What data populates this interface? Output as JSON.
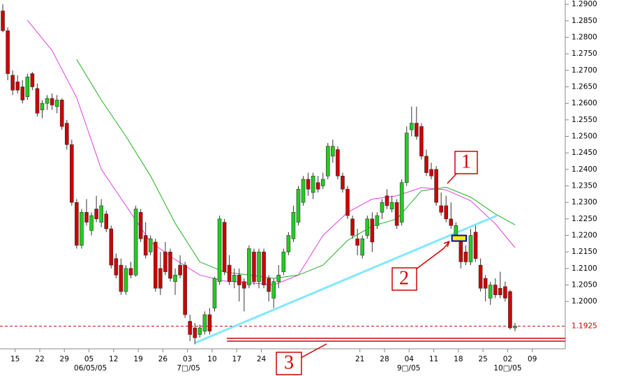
{
  "chart_data": {
    "type": "candlestick",
    "colors": {
      "up": "#22cc22",
      "down": "#cc0000",
      "outline": "#333333"
    },
    "xlim": [
      -0.57,
      114.2
    ],
    "ylim": [
      1.1863,
      1.2913
    ],
    "yticks": [
      {
        "value": 1.29,
        "label": "1.2900"
      },
      {
        "value": 1.285,
        "label": "1.2850"
      },
      {
        "value": 1.28,
        "label": "1.2800"
      },
      {
        "value": 1.275,
        "label": "1.2750"
      },
      {
        "value": 1.27,
        "label": "1.2700"
      },
      {
        "value": 1.265,
        "label": "1.2650"
      },
      {
        "value": 1.26,
        "label": "1.2600"
      },
      {
        "value": 1.255,
        "label": "1.2550"
      },
      {
        "value": 1.25,
        "label": "1.2500"
      },
      {
        "value": 1.245,
        "label": "1.2450"
      },
      {
        "value": 1.24,
        "label": "1.2400"
      },
      {
        "value": 1.235,
        "label": "1.2350"
      },
      {
        "value": 1.23,
        "label": "1.2300"
      },
      {
        "value": 1.225,
        "label": "1.2250"
      },
      {
        "value": 1.22,
        "label": "1.2200"
      },
      {
        "value": 1.215,
        "label": "1.2150"
      },
      {
        "value": 1.21,
        "label": "1.2100"
      },
      {
        "value": 1.205,
        "label": "1.2050"
      },
      {
        "value": 1.2,
        "label": "1.2000"
      }
    ],
    "xticks": [
      {
        "value": 2.5,
        "label": "15"
      },
      {
        "value": 7.5,
        "label": "22"
      },
      {
        "value": 12.5,
        "label": "29"
      },
      {
        "value": 17.5,
        "label": "05"
      },
      {
        "value": 22.5,
        "label": "12"
      },
      {
        "value": 27.5,
        "label": "19"
      },
      {
        "value": 32.5,
        "label": "26"
      },
      {
        "value": 37.5,
        "label": "03"
      },
      {
        "value": 42.5,
        "label": "10"
      },
      {
        "value": 47.5,
        "label": "17"
      },
      {
        "value": 52.5,
        "label": "24"
      },
      {
        "value": 72.5,
        "label": "21"
      },
      {
        "value": 77.5,
        "label": "28"
      },
      {
        "value": 82.5,
        "label": "04"
      },
      {
        "value": 87.5,
        "label": "11"
      },
      {
        "value": 92.5,
        "label": "18"
      },
      {
        "value": 97.5,
        "label": "25"
      },
      {
        "value": 102.5,
        "label": "02"
      },
      {
        "value": 107.5,
        "label": "09"
      }
    ],
    "month_labels": [
      {
        "value": 17.8,
        "label": "06/05/05"
      },
      {
        "value": 37.7,
        "label": "7□/05"
      },
      {
        "value": 82.4,
        "label": "9□/05"
      },
      {
        "value": 102.5,
        "label": "10□/05"
      }
    ],
    "x": [
      0,
      1,
      2,
      3,
      4,
      5,
      6,
      7,
      8,
      9,
      10,
      11,
      12,
      13,
      14,
      15,
      16,
      17,
      18,
      19,
      20,
      21,
      22,
      23,
      24,
      25,
      26,
      27,
      28,
      29,
      30,
      31,
      32,
      33,
      34,
      35,
      36,
      37,
      38,
      39,
      40,
      41,
      42,
      43,
      44,
      45,
      46,
      47,
      48,
      49,
      50,
      51,
      52,
      53,
      54,
      55,
      56,
      57,
      58,
      59,
      60,
      61,
      62,
      63,
      64,
      65,
      66,
      67,
      68,
      69,
      70,
      71,
      72,
      73,
      74,
      75,
      76,
      77,
      78,
      79,
      80,
      81,
      82,
      83,
      84,
      85,
      86,
      87,
      88,
      89,
      90,
      91,
      92,
      93,
      94,
      95,
      96,
      97,
      98,
      99,
      100,
      101,
      102,
      103,
      104
    ],
    "open": [
      1.288,
      1.282,
      1.2685,
      1.2665,
      1.265,
      1.262,
      1.269,
      1.2645,
      1.258,
      1.26,
      1.2615,
      1.259,
      1.261,
      1.254,
      1.2475,
      1.23,
      1.217,
      1.227,
      1.2215,
      1.228,
      1.224,
      1.2265,
      1.222,
      1.213,
      1.211,
      1.203,
      1.21,
      1.208,
      1.227,
      1.22,
      1.215,
      1.218,
      1.21,
      1.215,
      1.215,
      1.206,
      1.211,
      1.211,
      1.194,
      1.192,
      1.19,
      1.191,
      1.196,
      1.198,
      1.206,
      1.224,
      1.211,
      1.206,
      1.208,
      1.206,
      1.205,
      1.215,
      1.206,
      1.215,
      1.207,
      1.201,
      1.206,
      1.209,
      1.215,
      1.219,
      1.224,
      1.23,
      1.237,
      1.233,
      1.236,
      1.235,
      1.238,
      1.244,
      1.246,
      1.238,
      1.234,
      1.225,
      1.219,
      1.214,
      1.22,
      1.225,
      1.223,
      1.227,
      1.232,
      1.228,
      1.23,
      1.224,
      1.236,
      1.252,
      1.254,
      1.253,
      1.244,
      1.24,
      1.24,
      1.229,
      1.229,
      1.225,
      1.22,
      1.219,
      1.215,
      1.212,
      1.221,
      1.211,
      1.207,
      1.201,
      1.205,
      1.204,
      1.2045,
      1.203,
      1.192
    ],
    "high": [
      1.29,
      1.283,
      1.27,
      1.2685,
      1.267,
      1.269,
      1.2695,
      1.266,
      1.261,
      1.2625,
      1.263,
      1.2625,
      1.2615,
      1.255,
      1.249,
      1.231,
      1.228,
      1.231,
      1.227,
      1.232,
      1.231,
      1.2275,
      1.223,
      1.2145,
      1.213,
      1.211,
      1.212,
      1.229,
      1.228,
      1.224,
      1.22,
      1.219,
      1.215,
      1.218,
      1.216,
      1.21,
      1.214,
      1.212,
      1.196,
      1.1935,
      1.193,
      1.197,
      1.198,
      1.2075,
      1.226,
      1.225,
      1.214,
      1.21,
      1.21,
      1.207,
      1.217,
      1.216,
      1.216,
      1.216,
      1.208,
      1.207,
      1.211,
      1.216,
      1.221,
      1.229,
      1.235,
      1.238,
      1.239,
      1.239,
      1.238,
      1.239,
      1.248,
      1.249,
      1.247,
      1.239,
      1.235,
      1.226,
      1.222,
      1.22,
      1.226,
      1.227,
      1.227,
      1.231,
      1.234,
      1.232,
      1.231,
      1.237,
      1.253,
      1.259,
      1.259,
      1.254,
      1.246,
      1.242,
      1.241,
      1.233,
      1.232,
      1.23,
      1.224,
      1.22,
      1.217,
      1.222,
      1.223,
      1.213,
      1.208,
      1.206,
      1.207,
      1.209,
      1.206,
      1.2035,
      1.1935
    ],
    "low": [
      1.2815,
      1.267,
      1.2625,
      1.263,
      1.26,
      1.261,
      1.264,
      1.256,
      1.2555,
      1.258,
      1.258,
      1.257,
      1.252,
      1.246,
      1.229,
      1.216,
      1.216,
      1.223,
      1.22,
      1.224,
      1.2225,
      1.221,
      1.21,
      1.207,
      1.202,
      1.202,
      1.207,
      1.2075,
      1.218,
      1.213,
      1.214,
      1.203,
      1.202,
      1.208,
      1.206,
      1.202,
      1.207,
      1.195,
      1.188,
      1.187,
      1.189,
      1.19,
      1.19,
      1.197,
      1.205,
      1.208,
      1.205,
      1.204,
      1.2,
      1.197,
      1.204,
      1.205,
      1.204,
      1.204,
      1.2,
      1.198,
      1.204,
      1.208,
      1.214,
      1.218,
      1.223,
      1.229,
      1.232,
      1.231,
      1.233,
      1.234,
      1.237,
      1.242,
      1.237,
      1.233,
      1.225,
      1.219,
      1.214,
      1.213,
      1.219,
      1.215,
      1.222,
      1.225,
      1.228,
      1.227,
      1.222,
      1.223,
      1.235,
      1.25,
      1.249,
      1.243,
      1.238,
      1.237,
      1.229,
      1.226,
      1.224,
      1.222,
      1.218,
      1.21,
      1.211,
      1.211,
      1.212,
      1.203,
      1.2,
      1.199,
      1.201,
      1.201,
      1.2,
      1.1915,
      1.191
    ],
    "close": [
      1.282,
      1.269,
      1.264,
      1.264,
      1.261,
      1.268,
      1.265,
      1.257,
      1.26,
      1.2615,
      1.2595,
      1.261,
      1.253,
      1.2475,
      1.23,
      1.217,
      1.227,
      1.224,
      1.226,
      1.225,
      1.229,
      1.222,
      1.211,
      1.208,
      1.203,
      1.21,
      1.208,
      1.228,
      1.219,
      1.214,
      1.219,
      1.204,
      1.204,
      1.209,
      1.207,
      1.208,
      1.208,
      1.196,
      1.19,
      1.189,
      1.192,
      1.196,
      1.191,
      1.207,
      1.225,
      1.209,
      1.206,
      1.208,
      1.205,
      1.204,
      1.216,
      1.206,
      1.215,
      1.205,
      1.203,
      1.206,
      1.208,
      1.215,
      1.22,
      1.227,
      1.234,
      1.237,
      1.234,
      1.238,
      1.234,
      1.237,
      1.247,
      1.247,
      1.238,
      1.234,
      1.226,
      1.22,
      1.217,
      1.219,
      1.225,
      1.218,
      1.226,
      1.23,
      1.229,
      1.23,
      1.223,
      1.236,
      1.251,
      1.254,
      1.25,
      1.244,
      1.239,
      1.238,
      1.23,
      1.227,
      1.225,
      1.223,
      1.223,
      1.212,
      1.212,
      1.22,
      1.213,
      1.204,
      1.204,
      1.205,
      1.202,
      1.202,
      1.201,
      1.192,
      1.1925
    ],
    "moving_averages": [
      {
        "color": "#e040e0",
        "x": [
          5,
          10,
          15,
          20,
          25,
          30,
          35,
          40,
          45,
          50,
          55,
          60,
          65,
          70,
          75,
          80,
          85,
          90,
          95,
          100,
          104
        ],
        "values": [
          1.2852,
          1.276,
          1.2617,
          1.24,
          1.229,
          1.218,
          1.2127,
          1.208,
          1.2062,
          1.2057,
          1.205,
          1.208,
          1.22,
          1.227,
          1.231,
          1.232,
          1.2345,
          1.2338,
          1.2305,
          1.2235,
          1.2163
        ]
      },
      {
        "color": "#20b020",
        "x": [
          15,
          20,
          25,
          30,
          35,
          40,
          45,
          50,
          55,
          60,
          65,
          70,
          75,
          80,
          85,
          90,
          95,
          100,
          104
        ],
        "values": [
          1.2733,
          1.261,
          1.25,
          1.238,
          1.2237,
          1.212,
          1.2089,
          1.208,
          1.207,
          1.208,
          1.211,
          1.2185,
          1.2228,
          1.225,
          1.2335,
          1.2346,
          1.2316,
          1.2265,
          1.2232
        ]
      }
    ],
    "trendline": {
      "color": "#80e8ff",
      "x": [
        39.1,
        100.3
      ],
      "y": [
        1.1875,
        1.226
      ]
    },
    "support_line": {
      "color": "#cc0000",
      "x": [
        45.5,
        114.2
      ],
      "y": [
        1.1884,
        1.1884
      ]
    },
    "current_price": {
      "value": 1.1925,
      "label": "1.1925",
      "color": "#cc0000"
    },
    "highlight_box": {
      "x": [
        91.2,
        94.1
      ],
      "y": [
        1.22,
        1.2183
      ]
    },
    "callouts": [
      "1",
      "2",
      "3"
    ]
  }
}
